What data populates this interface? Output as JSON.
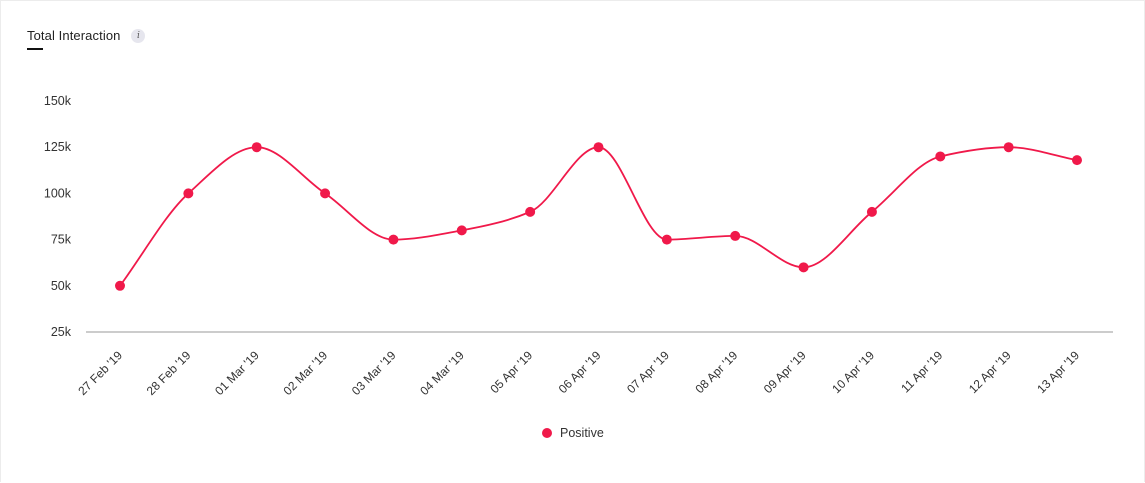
{
  "header": {
    "title": "Total Interaction",
    "info_icon": "info-icon"
  },
  "colors": {
    "series": "#f0194a",
    "axis": "#9a9a9a",
    "text": "#333333"
  },
  "chart_data": {
    "type": "line",
    "title": "Total Interaction",
    "xlabel": "",
    "ylabel": "",
    "categories": [
      "27 Feb '19",
      "28 Feb '19",
      "01 Mar '19",
      "02 Mar '19",
      "03 Mar '19",
      "04 Mar '19",
      "05 Apr '19",
      "06 Apr '19",
      "07 Apr '19",
      "08 Apr '19",
      "09 Apr '19",
      "10 Apr '19",
      "11 Apr '19",
      "12 Apr '19",
      "13 Apr '19"
    ],
    "series": [
      {
        "name": "Positive",
        "values": [
          50000,
          100000,
          125000,
          100000,
          75000,
          80000,
          90000,
          125000,
          75000,
          77000,
          60000,
          90000,
          120000,
          125000,
          118000
        ]
      }
    ],
    "ylim": [
      25000,
      150000
    ],
    "y_ticks": [
      25000,
      50000,
      75000,
      100000,
      125000,
      150000
    ],
    "y_tick_labels": [
      "25k",
      "50k",
      "75k",
      "100k",
      "125k",
      "150k"
    ],
    "grid": false,
    "smooth": true,
    "legend_position": "bottom-center"
  }
}
